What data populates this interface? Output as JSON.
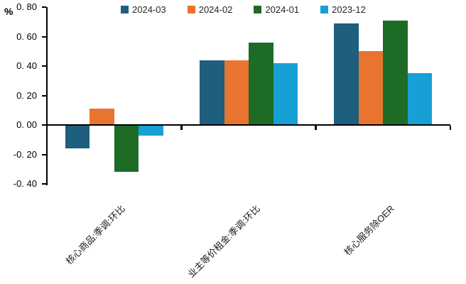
{
  "chart_data": {
    "type": "bar",
    "title": "",
    "unit": "%",
    "categories": [
      "核心商品:季调:环比",
      "业主等价租金:季调:环比",
      "核心服务除OER"
    ],
    "series": [
      {
        "name": "2024-03",
        "color": "#1D5F7D",
        "values": [
          -0.16,
          0.44,
          0.69
        ]
      },
      {
        "name": "2024-02",
        "color": "#E8742F",
        "values": [
          0.11,
          0.44,
          0.5
        ]
      },
      {
        "name": "2024-01",
        "color": "#1E6B26",
        "values": [
          -0.32,
          0.56,
          0.71
        ]
      },
      {
        "name": "2023-12",
        "color": "#16A0D6",
        "values": [
          -0.07,
          0.42,
          0.35
        ]
      }
    ],
    "ylim": [
      -0.4,
      0.8
    ],
    "y_tick_step": 0.2,
    "y_tick_labels": [
      "0. 80",
      "0. 60",
      "0. 40",
      "0. 20",
      "0. 00",
      "-0. 20",
      "-0. 40"
    ],
    "legend_position": "top",
    "grid": false,
    "axis_color": "#000000",
    "text_color": "#1a1a1a",
    "background_color": "#ffffff"
  }
}
